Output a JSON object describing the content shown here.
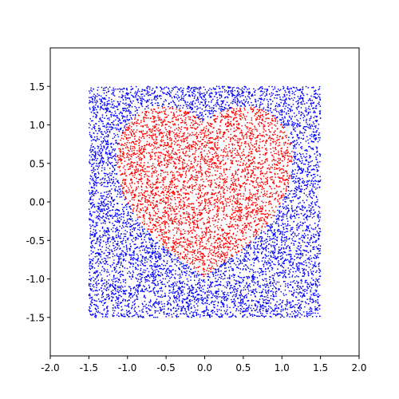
{
  "chart_data": {
    "type": "scatter",
    "title": "",
    "xlabel": "",
    "ylabel": "",
    "xlim": [
      -2.0,
      2.0
    ],
    "ylim": [
      -2.0,
      2.0
    ],
    "grid": false,
    "legend": "none",
    "x_ticks": [
      "-2.0",
      "-1.5",
      "-1.0",
      "-0.5",
      "0.0",
      "0.5",
      "1.0",
      "1.5",
      "2.0"
    ],
    "x_tick_values": [
      -2.0,
      -1.5,
      -1.0,
      -0.5,
      0.0,
      0.5,
      1.0,
      1.5,
      2.0
    ],
    "y_ticks": [
      "-1.5",
      "-1.0",
      "-0.5",
      "0.0",
      "0.5",
      "1.0",
      "1.5"
    ],
    "y_tick_values": [
      -1.5,
      -1.0,
      -0.5,
      0.0,
      0.5,
      1.0,
      1.5
    ],
    "series": [
      {
        "color": "#ff0000",
        "description": "points inside heart curve (x^2 + y^2 - 1)^3 - x^2 y^3 < 0",
        "region": {
          "xmin": -1.5,
          "xmax": 1.5,
          "ymin": -1.5,
          "ymax": 1.5
        },
        "marker": "dot"
      },
      {
        "color": "#0000ff",
        "description": "points outside heart curve within square [-1.5, 1.5]",
        "region": {
          "xmin": -1.5,
          "xmax": 1.5,
          "ymin": -1.5,
          "ymax": 1.5
        },
        "marker": "dot"
      }
    ],
    "sample_count": 10000
  }
}
